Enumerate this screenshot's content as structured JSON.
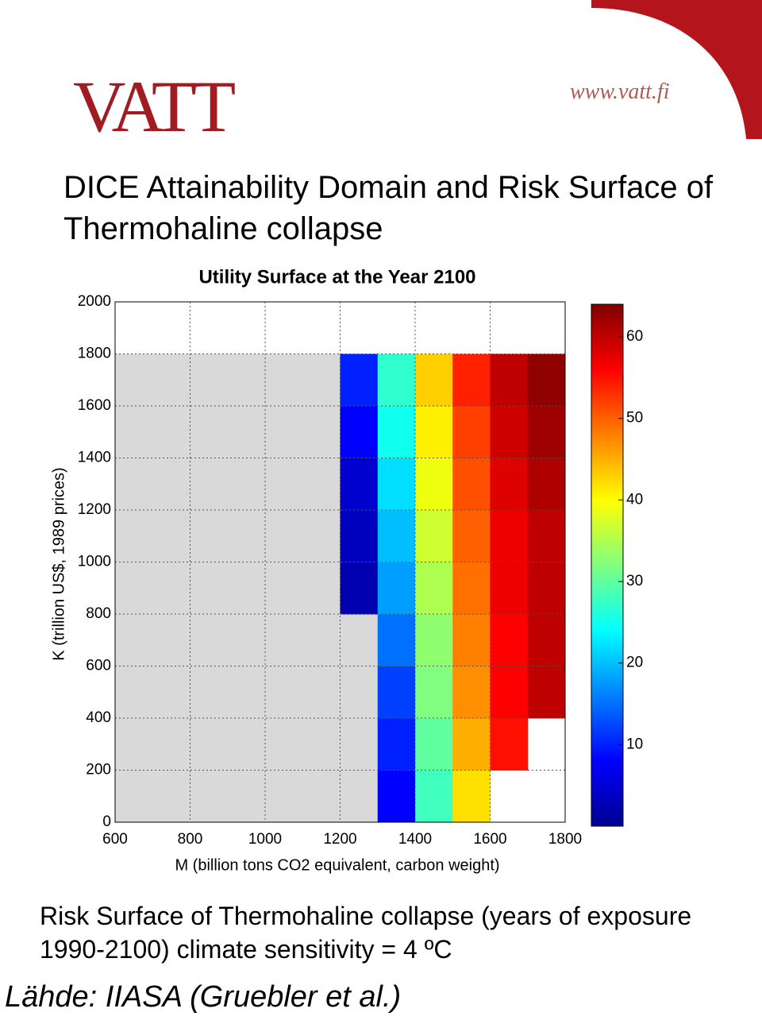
{
  "header": {
    "logo": "VATT",
    "url": "www.vatt.fi",
    "title": "DICE Attainability Domain and Risk Surface of Thermohaline collapse"
  },
  "chart_data": {
    "type": "heatmap",
    "title": "Utility Surface at the Year 2100",
    "x_label": "M (billion tons CO2 equivalent, carbon weight)",
    "y_label": "K (trillion US$, 1989 prices)",
    "x_bins": [
      600,
      700,
      800,
      900,
      1000,
      1100,
      1200,
      1300,
      1400,
      1500,
      1600,
      1700,
      1800
    ],
    "y_bins": [
      0,
      200,
      400,
      600,
      800,
      1000,
      1200,
      1400,
      1600,
      1800,
      2000
    ],
    "values": [
      [
        0,
        0,
        0,
        0,
        0,
        0,
        0,
        8,
        28,
        42,
        null,
        null
      ],
      [
        0,
        0,
        0,
        0,
        0,
        0,
        0,
        10,
        30,
        45,
        55,
        null
      ],
      [
        0,
        0,
        0,
        0,
        0,
        0,
        0,
        12,
        32,
        47,
        56,
        60
      ],
      [
        0,
        0,
        0,
        0,
        0,
        0,
        0,
        15,
        33,
        48,
        56,
        60
      ],
      [
        0,
        0,
        0,
        0,
        0,
        0,
        3,
        18,
        35,
        49,
        57,
        60
      ],
      [
        0,
        0,
        0,
        0,
        0,
        0,
        4,
        20,
        37,
        50,
        57,
        60
      ],
      [
        0,
        0,
        0,
        0,
        0,
        0,
        5,
        22,
        39,
        51,
        58,
        61
      ],
      [
        0,
        0,
        0,
        0,
        0,
        0,
        8,
        25,
        41,
        52,
        59,
        62
      ],
      [
        0,
        0,
        0,
        0,
        0,
        0,
        10,
        27,
        43,
        54,
        60,
        63
      ],
      [
        null,
        null,
        null,
        null,
        null,
        null,
        null,
        null,
        null,
        null,
        null,
        null
      ]
    ],
    "xlim": [
      600,
      1800
    ],
    "xticks": [
      600,
      800,
      1000,
      1200,
      1400,
      1600,
      1800
    ],
    "ylim": [
      0,
      2000
    ],
    "yticks": [
      0,
      200,
      400,
      600,
      800,
      1000,
      1200,
      1400,
      1600,
      1800,
      2000
    ],
    "clim": [
      0,
      64
    ],
    "cticks": [
      10,
      20,
      30,
      40,
      50,
      60
    ],
    "colormap": "jet",
    "zero_color": "#d9d9d9",
    "grid": true
  },
  "caption": "Risk Surface of Thermohaline collapse (years of exposure 1990-2100) climate sensitivity = 4 ºC",
  "source": "Lähde: IIASA (Gruebler et al.)"
}
